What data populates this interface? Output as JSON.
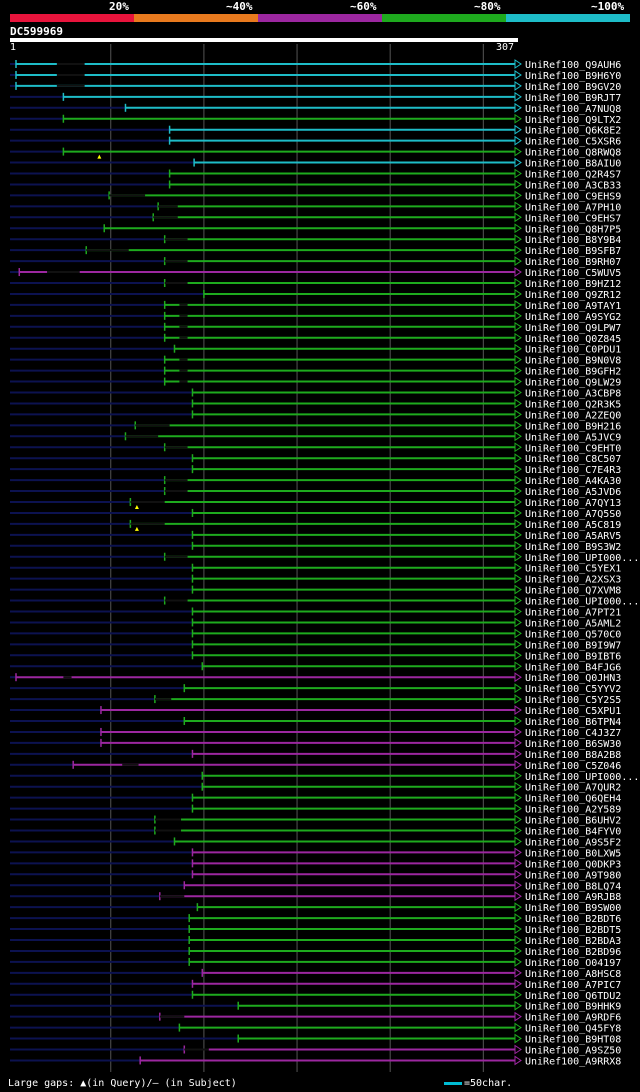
{
  "legend": [
    {
      "label": "20%",
      "color": "#e8143c"
    },
    {
      "label": "~40%",
      "color": "#e87a1e"
    },
    {
      "label": "~60%",
      "color": "#9c27a0"
    },
    {
      "label": "~80%",
      "color": "#1eaa1e"
    },
    {
      "label": "~100%",
      "color": "#1ebcc8"
    }
  ],
  "query": {
    "name": "DC599969",
    "start_label": "1",
    "end_label": "307"
  },
  "footer": {
    "text": "Large gaps: ▲(in Query)/– (in Subject)",
    "scale": "=50char."
  },
  "chart_data": {
    "type": "alignment",
    "title": "DC599969",
    "query_length": 307,
    "hits": [
      {
        "name": "UniRef100_Q9AUH6",
        "start": 1,
        "color": "#1ebcc8",
        "gap": [
          26,
          43
        ]
      },
      {
        "name": "UniRef100_B9H6Y0",
        "start": 1,
        "color": "#1ebcc8",
        "gap": [
          26,
          43
        ]
      },
      {
        "name": "UniRef100_B9GV20",
        "start": 1,
        "color": "#1ebcc8",
        "gap": [
          26,
          43
        ]
      },
      {
        "name": "UniRef100_B9RJT7",
        "start": 30,
        "color": "#1ebcc8"
      },
      {
        "name": "UniRef100_A7NUQ8",
        "start": 68,
        "color": "#1ebcc8"
      },
      {
        "name": "UniRef100_Q9LTX2",
        "start": 30,
        "color": "#1eaa1e"
      },
      {
        "name": "UniRef100_Q6K8E2",
        "start": 95,
        "color": "#1ebcc8"
      },
      {
        "name": "UniRef100_C5XSR6",
        "start": 95,
        "color": "#1ebcc8"
      },
      {
        "name": "UniRef100_Q8RWQ8",
        "start": 30,
        "color": "#1eaa1e",
        "tri": 52
      },
      {
        "name": "UniRef100_B8AIU0",
        "start": 110,
        "color": "#1ebcc8"
      },
      {
        "name": "UniRef100_Q2R4S7",
        "start": 95,
        "color": "#1eaa1e"
      },
      {
        "name": "UniRef100_A3CB33",
        "start": 95,
        "color": "#1eaa1e"
      },
      {
        "name": "UniRef100_C9EHS9",
        "start": 58,
        "color": "#1eaa1e",
        "gap": [
          58,
          80
        ]
      },
      {
        "name": "UniRef100_A7PH10",
        "start": 88,
        "color": "#1eaa1e",
        "gap": [
          88,
          100
        ]
      },
      {
        "name": "UniRef100_C9EHS7",
        "start": 85,
        "color": "#1eaa1e",
        "gap": [
          85,
          100
        ]
      },
      {
        "name": "UniRef100_Q8H7P5",
        "start": 55,
        "color": "#1eaa1e"
      },
      {
        "name": "UniRef100_B8Y9B4",
        "start": 92,
        "color": "#1eaa1e",
        "gap": [
          92,
          106
        ]
      },
      {
        "name": "UniRef100_B9SFB7",
        "start": 44,
        "color": "#1eaa1e",
        "gap": [
          44,
          70
        ]
      },
      {
        "name": "UniRef100_B9RH07",
        "start": 92,
        "color": "#1eaa1e",
        "gap": [
          92,
          106
        ]
      },
      {
        "name": "UniRef100_C5WUV5",
        "start": 3,
        "color": "#9c27a0",
        "gap": [
          20,
          40
        ]
      },
      {
        "name": "UniRef100_B9HZ12",
        "start": 92,
        "color": "#1eaa1e",
        "gap": [
          92,
          106
        ]
      },
      {
        "name": "UniRef100_Q9ZR12",
        "start": 116,
        "color": "#1eaa1e"
      },
      {
        "name": "UniRef100_A9TAY1",
        "start": 92,
        "color": "#1eaa1e",
        "gap": [
          101,
          106
        ]
      },
      {
        "name": "UniRef100_A9SYG2",
        "start": 92,
        "color": "#1eaa1e",
        "gap": [
          101,
          106
        ]
      },
      {
        "name": "UniRef100_Q9LPW7",
        "start": 92,
        "color": "#1eaa1e",
        "gap": [
          101,
          106
        ]
      },
      {
        "name": "UniRef100_Q0Z845",
        "start": 92,
        "color": "#1eaa1e",
        "gap": [
          101,
          106
        ]
      },
      {
        "name": "UniRef100_C0PDU1",
        "start": 98,
        "color": "#1eaa1e"
      },
      {
        "name": "UniRef100_B9N0V8",
        "start": 92,
        "color": "#1eaa1e",
        "gap": [
          101,
          106
        ]
      },
      {
        "name": "UniRef100_B9GFH2",
        "start": 92,
        "color": "#1eaa1e",
        "gap": [
          101,
          106
        ]
      },
      {
        "name": "UniRef100_Q9LW29",
        "start": 92,
        "color": "#1eaa1e",
        "gap": [
          101,
          106
        ]
      },
      {
        "name": "UniRef100_A3CBP8",
        "start": 109,
        "color": "#1eaa1e"
      },
      {
        "name": "UniRef100_Q2R3K5",
        "start": 109,
        "color": "#1eaa1e"
      },
      {
        "name": "UniRef100_A2ZEQ0",
        "start": 109,
        "color": "#1eaa1e"
      },
      {
        "name": "UniRef100_B9H216",
        "start": 74,
        "color": "#1eaa1e",
        "gap": [
          74,
          95
        ]
      },
      {
        "name": "UniRef100_A5JVC9",
        "start": 68,
        "color": "#1eaa1e",
        "gap": [
          68,
          88
        ]
      },
      {
        "name": "UniRef100_C9EHT0",
        "start": 92,
        "color": "#1eaa1e",
        "gap": [
          92,
          106
        ]
      },
      {
        "name": "UniRef100_C8C507",
        "start": 109,
        "color": "#1eaa1e"
      },
      {
        "name": "UniRef100_C7E4R3",
        "start": 109,
        "color": "#1eaa1e"
      },
      {
        "name": "UniRef100_A4KA30",
        "start": 92,
        "color": "#1eaa1e",
        "gap": [
          92,
          106
        ]
      },
      {
        "name": "UniRef100_A5JVD6",
        "start": 92,
        "color": "#1eaa1e",
        "gap": [
          92,
          106
        ]
      },
      {
        "name": "UniRef100_A7QY13",
        "start": 71,
        "color": "#1eaa1e",
        "gap": [
          71,
          92
        ],
        "tri": 75
      },
      {
        "name": "UniRef100_A7Q5S0",
        "start": 109,
        "color": "#1eaa1e"
      },
      {
        "name": "UniRef100_A5C819",
        "start": 71,
        "color": "#1eaa1e",
        "gap": [
          71,
          92
        ],
        "tri": 75
      },
      {
        "name": "UniRef100_A5ARV5",
        "start": 109,
        "color": "#1eaa1e"
      },
      {
        "name": "UniRef100_B9S3W2",
        "start": 109,
        "color": "#1eaa1e"
      },
      {
        "name": "UniRef100_UPI000...",
        "start": 92,
        "color": "#1eaa1e",
        "gap": [
          92,
          106
        ]
      },
      {
        "name": "UniRef100_C5YEX1",
        "start": 109,
        "color": "#1eaa1e"
      },
      {
        "name": "UniRef100_A2XSX3",
        "start": 109,
        "color": "#1eaa1e"
      },
      {
        "name": "UniRef100_Q7XVM8",
        "start": 109,
        "color": "#1eaa1e"
      },
      {
        "name": "UniRef100_UPI000...",
        "start": 92,
        "color": "#1eaa1e",
        "gap": [
          92,
          106
        ]
      },
      {
        "name": "UniRef100_A7PT21",
        "start": 109,
        "color": "#1eaa1e"
      },
      {
        "name": "UniRef100_A5AML2",
        "start": 109,
        "color": "#1eaa1e"
      },
      {
        "name": "UniRef100_Q570C0",
        "start": 109,
        "color": "#1eaa1e"
      },
      {
        "name": "UniRef100_B9I9W7",
        "start": 109,
        "color": "#1eaa1e"
      },
      {
        "name": "UniRef100_B9IBT6",
        "start": 109,
        "color": "#1eaa1e"
      },
      {
        "name": "UniRef100_B4FJG6",
        "start": 115,
        "color": "#1eaa1e"
      },
      {
        "name": "UniRef100_Q0JHN3",
        "start": 1,
        "color": "#9c27a0",
        "gap": [
          30,
          35
        ]
      },
      {
        "name": "UniRef100_C5YYV2",
        "start": 104,
        "color": "#1eaa1e"
      },
      {
        "name": "UniRef100_C5Y2S5",
        "start": 86,
        "color": "#1eaa1e",
        "gap": [
          86,
          96
        ]
      },
      {
        "name": "UniRef100_C5XPU1",
        "start": 53,
        "color": "#9c27a0"
      },
      {
        "name": "UniRef100_B6TPN4",
        "start": 104,
        "color": "#1eaa1e"
      },
      {
        "name": "UniRef100_C4J3Z7",
        "start": 53,
        "color": "#9c27a0"
      },
      {
        "name": "UniRef100_B6SW30",
        "start": 53,
        "color": "#9c27a0"
      },
      {
        "name": "UniRef100_B8A2B8",
        "start": 109,
        "color": "#9c27a0"
      },
      {
        "name": "UniRef100_C5Z046",
        "start": 36,
        "color": "#9c27a0",
        "gap": [
          66,
          76
        ]
      },
      {
        "name": "UniRef100_UPI000...",
        "start": 115,
        "color": "#1eaa1e"
      },
      {
        "name": "UniRef100_A7QUR2",
        "start": 115,
        "color": "#1eaa1e"
      },
      {
        "name": "UniRef100_Q6QEH4",
        "start": 109,
        "color": "#1eaa1e"
      },
      {
        "name": "UniRef100_A2Y589",
        "start": 109,
        "color": "#1eaa1e"
      },
      {
        "name": "UniRef100_B6UHV2",
        "start": 86,
        "color": "#1eaa1e",
        "gap": [
          86,
          102
        ]
      },
      {
        "name": "UniRef100_B4FYV0",
        "start": 86,
        "color": "#1eaa1e",
        "gap": [
          86,
          102
        ]
      },
      {
        "name": "UniRef100_A9S5F2",
        "start": 98,
        "color": "#1eaa1e"
      },
      {
        "name": "UniRef100_B0LXW5",
        "start": 109,
        "color": "#9c27a0"
      },
      {
        "name": "UniRef100_Q0DKP3",
        "start": 109,
        "color": "#9c27a0"
      },
      {
        "name": "UniRef100_A9T980",
        "start": 109,
        "color": "#9c27a0"
      },
      {
        "name": "UniRef100_B8LQ74",
        "start": 104,
        "color": "#9c27a0"
      },
      {
        "name": "UniRef100_A9RJB8",
        "start": 89,
        "color": "#9c27a0",
        "gap": [
          89,
          104
        ]
      },
      {
        "name": "UniRef100_B9SW00",
        "start": 112,
        "color": "#1eaa1e"
      },
      {
        "name": "UniRef100_B2BDT6",
        "start": 107,
        "color": "#1eaa1e"
      },
      {
        "name": "UniRef100_B2BDT5",
        "start": 107,
        "color": "#1eaa1e"
      },
      {
        "name": "UniRef100_B2BDA3",
        "start": 107,
        "color": "#1eaa1e"
      },
      {
        "name": "UniRef100_B2BD96",
        "start": 107,
        "color": "#1eaa1e"
      },
      {
        "name": "UniRef100_O04197",
        "start": 107,
        "color": "#1eaa1e"
      },
      {
        "name": "UniRef100_A8HSC8",
        "start": 115,
        "color": "#9c27a0"
      },
      {
        "name": "UniRef100_A7PIC7",
        "start": 109,
        "color": "#9c27a0"
      },
      {
        "name": "UniRef100_Q6TDU2",
        "start": 109,
        "color": "#1eaa1e"
      },
      {
        "name": "UniRef100_B9HHK9",
        "start": 137,
        "color": "#1eaa1e"
      },
      {
        "name": "UniRef100_A9RDF6",
        "start": 89,
        "color": "#9c27a0",
        "gap": [
          89,
          104
        ]
      },
      {
        "name": "UniRef100_Q45FY8",
        "start": 101,
        "color": "#1eaa1e"
      },
      {
        "name": "UniRef100_B9HT08",
        "start": 137,
        "color": "#1eaa1e"
      },
      {
        "name": "UniRef100_A9SZ50",
        "start": 104,
        "color": "#9c27a0",
        "gap": [
          104,
          119
        ]
      },
      {
        "name": "UniRef100_A9RRX8",
        "start": 77,
        "color": "#9c27a0"
      }
    ]
  }
}
